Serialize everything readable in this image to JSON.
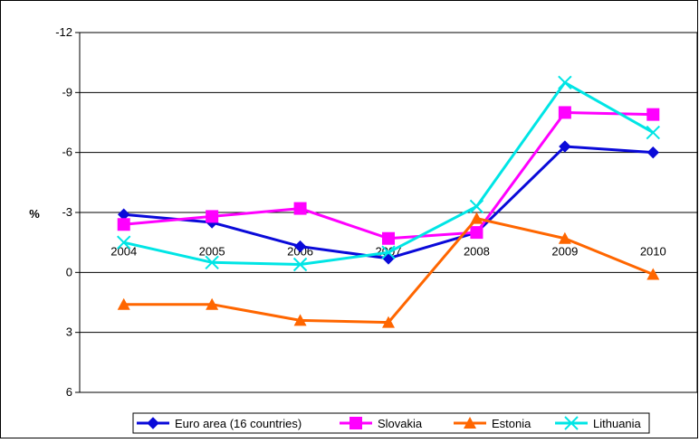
{
  "chart_data": {
    "type": "line",
    "title": "",
    "xlabel": "",
    "ylabel": "%",
    "ylim": [
      6,
      -12
    ],
    "y_axis_inverted": true,
    "y_ticks": [
      "-12",
      "-9",
      "-6",
      "-3",
      "0",
      "3",
      "6"
    ],
    "grid": true,
    "legend_position": "bottom",
    "categories": [
      "2004",
      "2005",
      "2006",
      "2007",
      "2008",
      "2009",
      "2010"
    ],
    "series": [
      {
        "name": "Euro area (16 countries)",
        "color": "#0a0ad9",
        "marker": "diamond",
        "values": [
          -2.9,
          -2.5,
          -1.3,
          -0.7,
          -2.0,
          -6.3,
          -6.0
        ]
      },
      {
        "name": "Slovakia",
        "color": "#ff00ff",
        "marker": "square",
        "values": [
          -2.4,
          -2.8,
          -3.2,
          -1.7,
          -2.0,
          -8.0,
          -7.9
        ]
      },
      {
        "name": "Estonia",
        "color": "#ff6600",
        "marker": "triangle",
        "values": [
          1.6,
          1.6,
          2.4,
          2.5,
          -2.7,
          -1.7,
          0.1
        ]
      },
      {
        "name": "Lithuania",
        "color": "#00e5e5",
        "marker": "x",
        "values": [
          -1.5,
          -0.5,
          -0.4,
          -1.0,
          -3.3,
          -9.5,
          -7.0
        ]
      }
    ]
  }
}
